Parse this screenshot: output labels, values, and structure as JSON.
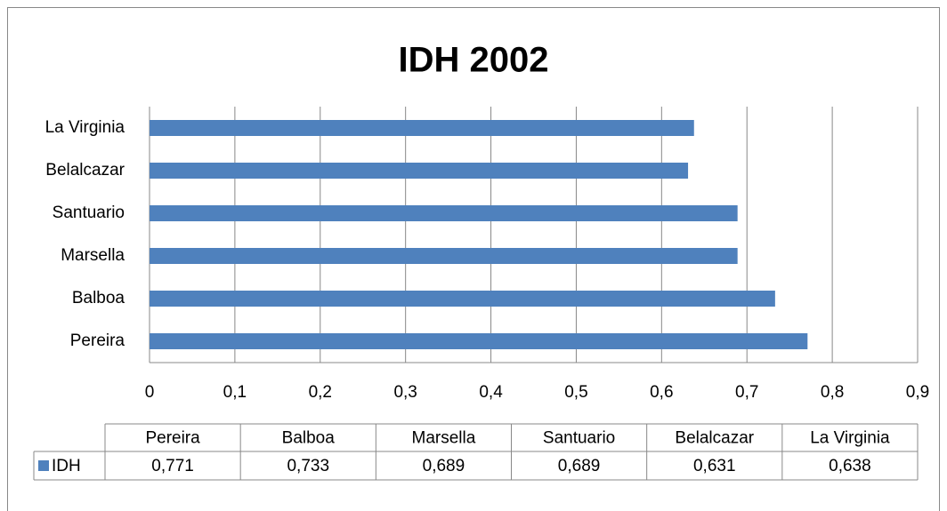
{
  "chart_data": {
    "type": "bar",
    "orientation": "horizontal",
    "title": "IDH 2002",
    "categories": [
      "Pereira",
      "Balboa",
      "Marsella",
      "Santuario",
      "Belalcazar",
      "La Virginia"
    ],
    "series": [
      {
        "name": "IDH",
        "color": "#4f81bd",
        "values": [
          0.771,
          0.733,
          0.689,
          0.689,
          0.631,
          0.638
        ],
        "value_labels": [
          "0,771",
          "0,733",
          "0,689",
          "0,689",
          "0,631",
          "0,638"
        ]
      }
    ],
    "xlim": [
      0,
      0.9
    ],
    "xticks": [
      0,
      {
        "value": 0.1,
        "label": "0,1"
      },
      {
        "value": 0.2,
        "label": "0,2"
      },
      {
        "value": 0.3,
        "label": "0,3"
      },
      {
        "value": 0.4,
        "label": "0,4"
      },
      {
        "value": 0.5,
        "label": "0,5"
      },
      {
        "value": 0.6,
        "label": "0,6"
      },
      {
        "value": 0.7,
        "label": "0,7"
      },
      {
        "value": 0.8,
        "label": "0,8"
      },
      {
        "value": 0.9,
        "label": "0,9"
      }
    ],
    "grid": true,
    "data_table": true
  }
}
